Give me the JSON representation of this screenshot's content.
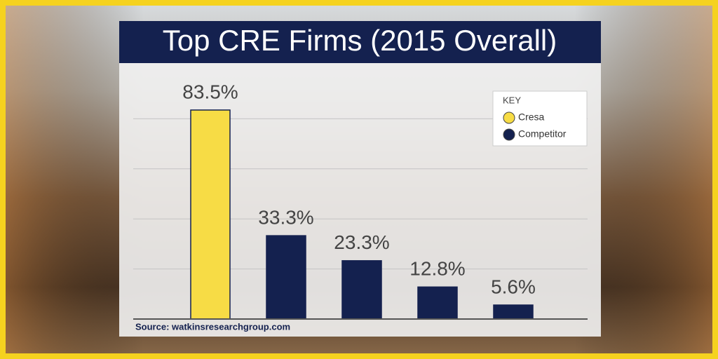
{
  "chart_data": {
    "type": "bar",
    "title": "Top CRE Firms (2015 Overall)",
    "categories": [
      null,
      null,
      null,
      null,
      null
    ],
    "values": [
      83.5,
      33.3,
      23.3,
      12.8,
      5.6
    ],
    "value_labels": [
      "83.5%",
      "33.3%",
      "23.3%",
      "12.8%",
      "5.6%"
    ],
    "colors": [
      "#f7dc45",
      "#14214f",
      "#14214f",
      "#14214f",
      "#14214f"
    ],
    "ylim": [
      0,
      100
    ],
    "yticks": [
      0,
      20,
      40,
      60,
      80
    ],
    "grid": true,
    "legend": {
      "title": "KEY",
      "position": "upper right",
      "entries": [
        {
          "name": "Cresa",
          "color": "#f7dc45"
        },
        {
          "name": "Competitor",
          "color": "#14214f"
        }
      ]
    },
    "source": "Source: watkinsresearchgroup.com"
  }
}
